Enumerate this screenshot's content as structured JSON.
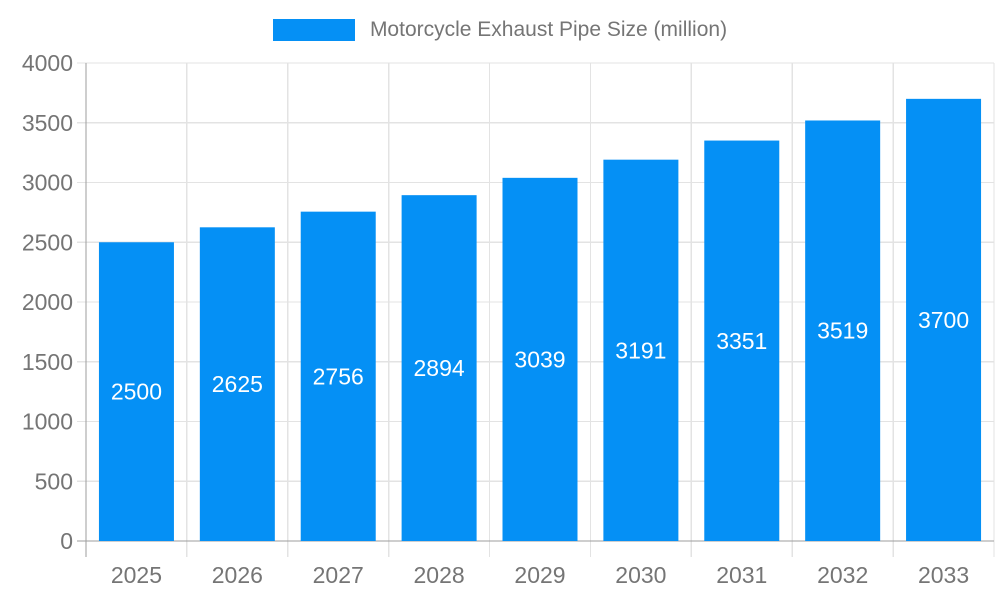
{
  "legend": {
    "label": "Motorcycle Exhaust Pipe Size (million)"
  },
  "chart_data": {
    "type": "bar",
    "title": "Motorcycle Exhaust Pipe Size (million)",
    "categories": [
      "2025",
      "2026",
      "2027",
      "2028",
      "2029",
      "2030",
      "2031",
      "2032",
      "2033"
    ],
    "values": [
      2500,
      2625,
      2756,
      2894,
      3039,
      3191,
      3351,
      3519,
      3700
    ],
    "xlabel": "",
    "ylabel": "",
    "ylim": [
      0,
      4000
    ],
    "yticks": [
      0,
      500,
      1000,
      1500,
      2000,
      2500,
      3000,
      3500,
      4000
    ],
    "grid": true,
    "legend_position": "top-center",
    "bar_labels_inside": true,
    "colors": {
      "bar": "#0590f5",
      "bar_label": "#ffffff",
      "axis_text": "#757575",
      "grid_line": "#e3e3e3",
      "axis_line": "#9e9e9e",
      "background": "#ffffff"
    }
  }
}
